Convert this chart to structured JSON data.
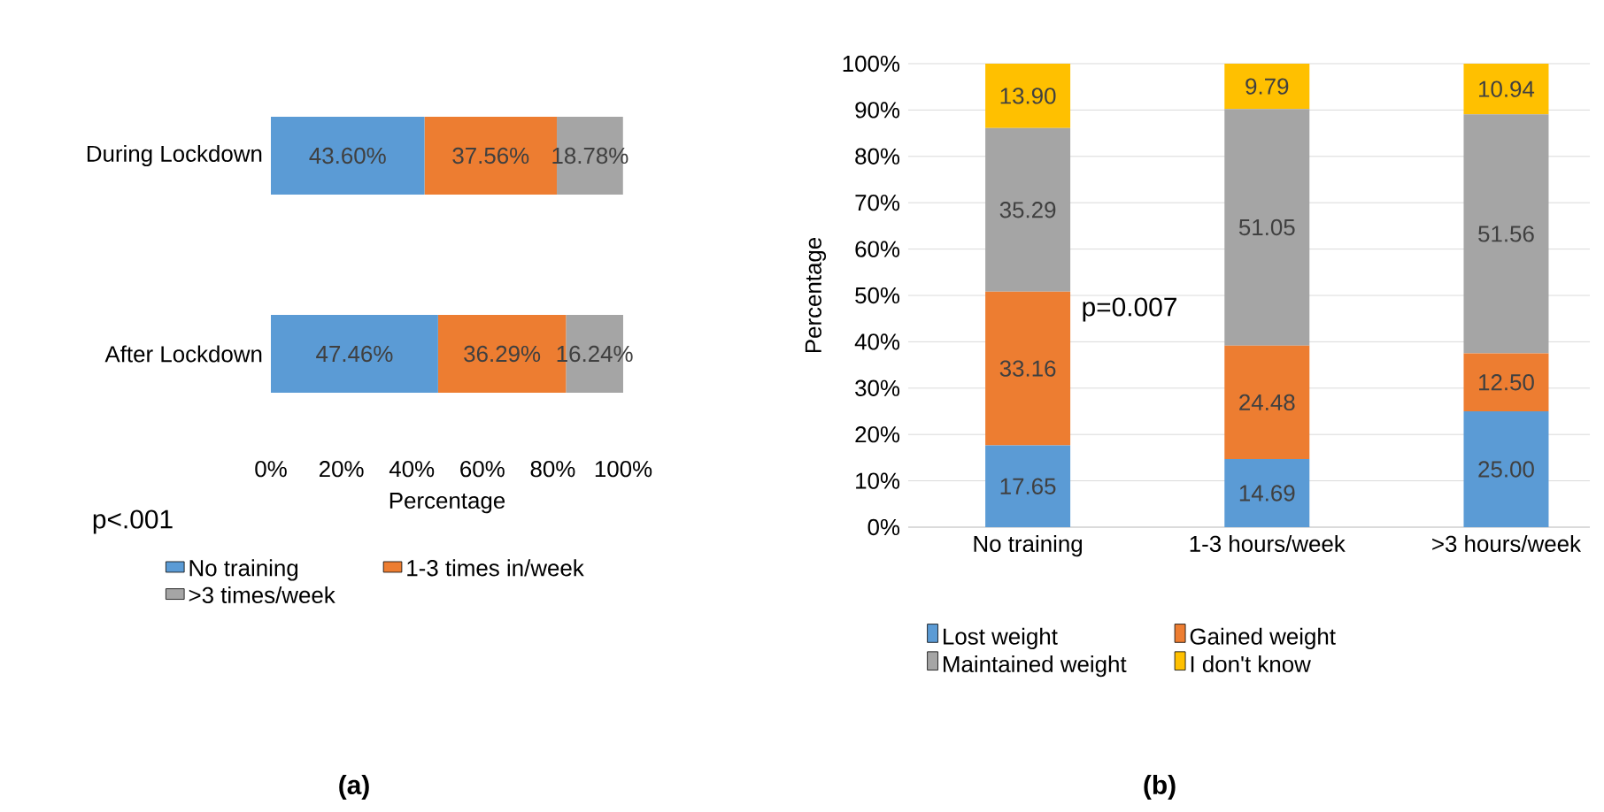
{
  "chart_data": [
    {
      "type": "bar",
      "orientation": "horizontal",
      "stacked": true,
      "categories": [
        "During Lockdown",
        "After Lockdown"
      ],
      "xlabel": "Percentage",
      "xlim": [
        0,
        100
      ],
      "xticks": [
        {
          "value": 0,
          "label": "0%"
        },
        {
          "value": 20,
          "label": "20%"
        },
        {
          "value": 40,
          "label": "40%"
        },
        {
          "value": 60,
          "label": "60%"
        },
        {
          "value": 80,
          "label": "80%"
        },
        {
          "value": 100,
          "label": "100%"
        }
      ],
      "legend": "bottom",
      "annotations": [
        "p<.001",
        "(a)"
      ],
      "series": [
        {
          "name": "No training",
          "color": "#5b9bd5",
          "values": [
            43.6,
            47.46
          ],
          "value_labels": [
            "43.60%",
            "47.46%"
          ]
        },
        {
          "name": "1-3 times in/week",
          "color": "#ed7d31",
          "values": [
            37.56,
            36.29
          ],
          "value_labels": [
            "37.56%",
            "36.29%"
          ]
        },
        {
          "name": ">3 times/week",
          "color": "#a5a5a5",
          "values": [
            18.78,
            16.24
          ],
          "value_labels": [
            "18.78%",
            "16.24%"
          ]
        }
      ]
    },
    {
      "type": "bar",
      "stacked": true,
      "categories": [
        "No training",
        "1-3 hours/week",
        ">3 hours/week"
      ],
      "ylabel": "Percentage",
      "ylim": [
        0,
        100
      ],
      "yticks": [
        {
          "value": 0,
          "label": "0%"
        },
        {
          "value": 10,
          "label": "10%"
        },
        {
          "value": 20,
          "label": "20%"
        },
        {
          "value": 30,
          "label": "30%"
        },
        {
          "value": 40,
          "label": "40%"
        },
        {
          "value": 50,
          "label": "50%"
        },
        {
          "value": 60,
          "label": "60%"
        },
        {
          "value": 70,
          "label": "70%"
        },
        {
          "value": 80,
          "label": "80%"
        },
        {
          "value": 90,
          "label": "90%"
        },
        {
          "value": 100,
          "label": "100%"
        }
      ],
      "grid": "y",
      "legend": "bottom",
      "annotations": [
        "p=0.007",
        "(b)"
      ],
      "series": [
        {
          "name": "Lost weight",
          "color": "#5b9bd5",
          "values": [
            17.65,
            14.69,
            25.0
          ],
          "value_labels": [
            "17.65",
            "14.69",
            "25.00"
          ]
        },
        {
          "name": "Gained weight",
          "color": "#ed7d31",
          "values": [
            33.16,
            24.48,
            12.5
          ],
          "value_labels": [
            "33.16",
            "24.48",
            "12.50"
          ]
        },
        {
          "name": "Maintained weight",
          "color": "#a5a5a5",
          "values": [
            35.29,
            51.05,
            51.56
          ],
          "value_labels": [
            "35.29",
            "51.05",
            "51.56"
          ]
        },
        {
          "name": "I don't know",
          "color": "#ffc000",
          "values": [
            13.9,
            9.79,
            10.94
          ],
          "value_labels": [
            "13.90",
            "9.79",
            "10.94"
          ]
        }
      ]
    }
  ]
}
